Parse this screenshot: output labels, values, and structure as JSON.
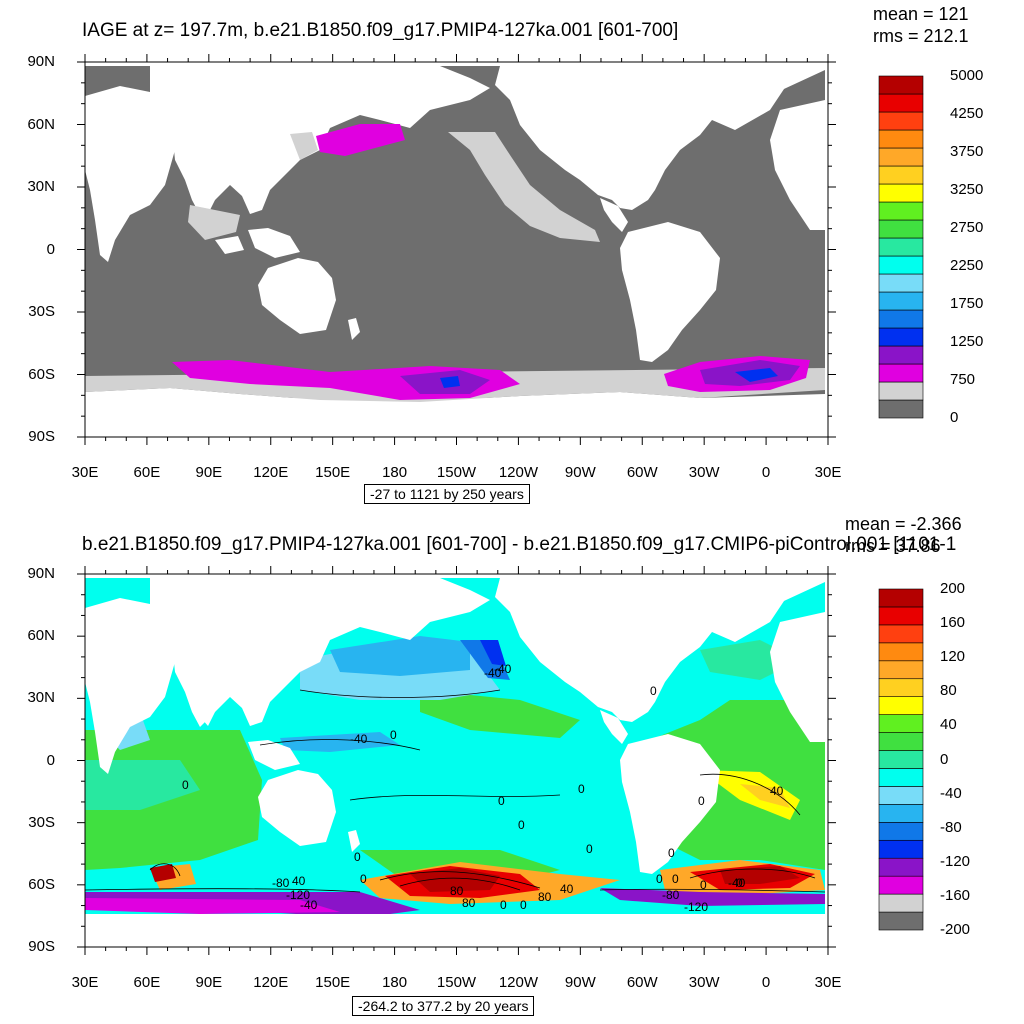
{
  "palette": {
    "gray": "#6e6e6e",
    "light_gray": "#d2d2d2",
    "magenta": "#e000e0",
    "purple": "#8a14c8",
    "blue": "#0030f0",
    "mid_blue": "#1078e8",
    "sky_blue": "#28b4f0",
    "light_blue": "#78dcf8",
    "cyan": "#00ffee",
    "turquoise": "#28e8a0",
    "green": "#40e040",
    "bright_green": "#60f020",
    "yellow": "#ffff00",
    "gold": "#ffd020",
    "light_orange": "#ffa828",
    "orange": "#ff8a10",
    "red_orange": "#ff4010",
    "red": "#e80000",
    "dark_red": "#b40000"
  },
  "panel_top": {
    "title": "IAGE at z= 197.7m, b.e21.B1850.f09_g17.PMIP4-127ka.001 [601-700]",
    "mean": "mean = 121",
    "rms": "rms = 212.1",
    "info_box": "-27 to 1121 by 250 years"
  },
  "panel_bottom": {
    "title": "b.e21.B1850.f09_g17.PMIP4-127ka.001 [601-700] - b.e21.B1850.f09_g17.CMIP6-piControl.001 [1101-1",
    "mean": "mean = -2.366",
    "rms": "rms = 37.86",
    "info_box": "-264.2 to 377.2 by 20 years",
    "contour_labels": [
      "-40",
      "0",
      "-40",
      "0",
      "0",
      "0",
      "0",
      "0",
      "-40",
      "0",
      "0",
      "0",
      "0",
      "0",
      "-80",
      "40",
      "0",
      "-120",
      "80",
      "40",
      "80",
      "0",
      "-80",
      "0",
      "40",
      "0",
      "-120",
      "-40",
      "0",
      "80",
      "-40",
      "0"
    ]
  },
  "chart_data": [
    {
      "type": "heatmap",
      "title": "IAGE at z= 197.7m, b.e21.B1850.f09_g17.PMIP4-127ka.001 [601-700]",
      "variable": "IAGE",
      "depth": "z= 197.7m",
      "projection": "cylindrical equidistant, Pacific-centered",
      "xlabel": "",
      "ylabel": "",
      "xlim_degrees_east": [
        30,
        390
      ],
      "ylim_degrees_north": [
        -90,
        90
      ],
      "x_tick_labels": [
        "30E",
        "60E",
        "90E",
        "120E",
        "150E",
        "180",
        "150W",
        "120W",
        "90W",
        "60W",
        "30W",
        "0",
        "30E"
      ],
      "y_tick_labels": [
        "90N",
        "60N",
        "30N",
        "0",
        "30S",
        "60S",
        "90S"
      ],
      "stats": {
        "mean": 121,
        "rms": 212.1
      },
      "contour_range": {
        "min": -27,
        "max": 1121,
        "interval": 250,
        "units": "years"
      },
      "colorbar": {
        "labels": [
          "5000",
          "4250",
          "3750",
          "3250",
          "2750",
          "2250",
          "1750",
          "1250",
          "750",
          "0"
        ],
        "colors": [
          "#6e6e6e",
          "#d2d2d2",
          "#e000e0",
          "#8a14c8",
          "#0030f0",
          "#1078e8",
          "#28b4f0",
          "#78dcf8",
          "#00ffee",
          "#28e8a0",
          "#40e040",
          "#60f020",
          "#ffff00",
          "#ffd020",
          "#ffa828",
          "#ff8a10",
          "#ff4010",
          "#e80000",
          "#b40000"
        ]
      },
      "regions": [
        {
          "name": "most ocean",
          "approx_value": 0,
          "color": "#6e6e6e"
        },
        {
          "name": "tropical Pacific / Atlantic fringe",
          "approx_value": 250,
          "color": "#d2d2d2"
        },
        {
          "name": "Bering Sea / North Pacific",
          "approx_value": 750,
          "color": "#e000e0"
        },
        {
          "name": "Southern Ocean (Pacific sector)",
          "approx_value": 1000,
          "color": "#8a14c8"
        },
        {
          "name": "Weddell Sea core",
          "approx_value": 1250,
          "color": "#0030f0"
        }
      ]
    },
    {
      "type": "heatmap",
      "title": "b.e21.B1850.f09_g17.PMIP4-127ka.001 [601-700] - b.e21.B1850.f09_g17.CMIP6-piControl.001 [1101-1",
      "variable": "IAGE difference",
      "projection": "cylindrical equidistant, Pacific-centered",
      "xlabel": "",
      "ylabel": "",
      "xlim_degrees_east": [
        30,
        390
      ],
      "ylim_degrees_north": [
        -90,
        90
      ],
      "x_tick_labels": [
        "30E",
        "60E",
        "90E",
        "120E",
        "150E",
        "180",
        "150W",
        "120W",
        "90W",
        "60W",
        "30W",
        "0",
        "30E"
      ],
      "y_tick_labels": [
        "90N",
        "60N",
        "30N",
        "0",
        "30S",
        "60S",
        "90S"
      ],
      "stats": {
        "mean": -2.366,
        "rms": 37.86
      },
      "contour_range": {
        "min": -264.2,
        "max": 377.2,
        "interval": 20,
        "units": "years"
      },
      "colorbar": {
        "labels": [
          "200",
          "160",
          "120",
          "80",
          "40",
          "0",
          "-40",
          "-80",
          "-120",
          "-160",
          "-200"
        ],
        "colors": [
          "#6e6e6e",
          "#d2d2d2",
          "#e000e0",
          "#8a14c8",
          "#0030f0",
          "#1078e8",
          "#28b4f0",
          "#78dcf8",
          "#00ffee",
          "#28e8a0",
          "#40e040",
          "#60f020",
          "#ffff00",
          "#ffd020",
          "#ffa828",
          "#ff8a10",
          "#ff4010",
          "#e80000",
          "#b40000"
        ]
      },
      "regions": [
        {
          "name": "North Pacific / Arctic",
          "approx_value": -10,
          "color": "#00ffee"
        },
        {
          "name": "Indian Ocean / Atlantic",
          "approx_value": 10,
          "color": "#40e040"
        },
        {
          "name": "Bering Sea",
          "approx_value": -80,
          "color": "#1078e8"
        },
        {
          "name": "Eastern tropical Atlantic",
          "approx_value": 50,
          "color": "#ffff00"
        },
        {
          "name": "Ross Sea / Pacific Southern Ocean",
          "approx_value": 200,
          "color": "#b40000"
        },
        {
          "name": "Weddell Sea",
          "approx_value": 200,
          "color": "#b40000"
        },
        {
          "name": "Antarctic margin",
          "approx_value": -160,
          "color": "#8a14c8"
        }
      ]
    }
  ]
}
